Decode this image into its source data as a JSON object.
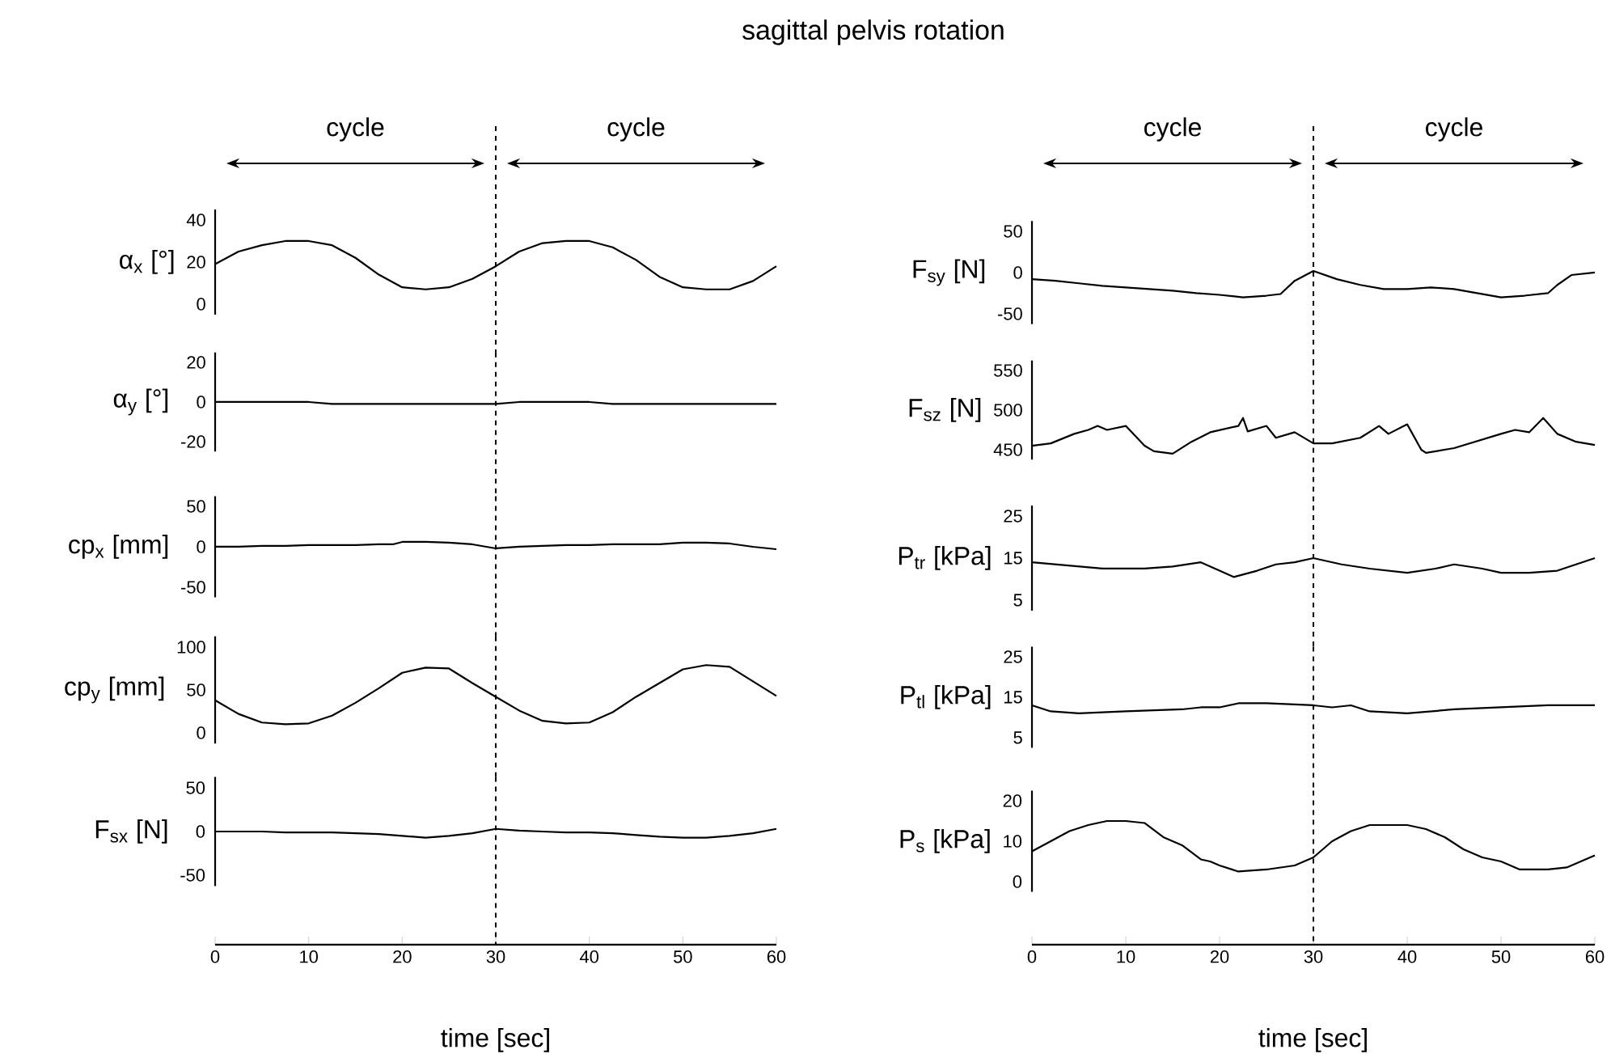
{
  "chart_data": [
    {
      "type": "line",
      "title": "sagittal pelvis rotation",
      "annotations": [
        "cycle",
        "cycle"
      ],
      "ylabel": "α$_{x}$ [°]",
      "xlim": [
        0,
        60
      ],
      "xticks": [
        0,
        10,
        20,
        30,
        40,
        50,
        60
      ],
      "ylim": [
        -5,
        45
      ],
      "yticks": [
        0,
        20,
        40
      ],
      "tick_labels": "y",
      "ref_lines": [
        {
          "axis": "x",
          "value": 30,
          "line_style": "dashed"
        }
      ],
      "series": [
        {
          "color": "#000000",
          "x": [
            0,
            2.5,
            5,
            7.5,
            10,
            12.5,
            15,
            17.5,
            20,
            22.5,
            25,
            27.5,
            30,
            32.5,
            35,
            37.5,
            40,
            42.5,
            45,
            47.5,
            50,
            52.5,
            55,
            57.5,
            60
          ],
          "values": [
            19,
            25,
            28,
            30,
            30,
            28,
            22,
            14,
            8,
            7,
            8,
            12,
            18,
            25,
            29,
            30,
            30,
            27,
            21,
            13,
            8,
            7,
            7,
            11,
            18
          ]
        }
      ]
    },
    {
      "type": "line",
      "ylabel": "α$_{y}$ [°]",
      "xlim": [
        0,
        60
      ],
      "xticks": [
        0,
        10,
        20,
        30,
        40,
        50,
        60
      ],
      "ylim": [
        -25,
        25
      ],
      "yticks": [
        -20,
        0,
        20
      ],
      "tick_labels": "y",
      "ref_lines": [
        {
          "axis": "x",
          "value": 30,
          "line_style": "dashed"
        }
      ],
      "series": [
        {
          "color": "#000000",
          "x": [
            0,
            2.5,
            5,
            7.5,
            10,
            12.5,
            15,
            17.5,
            20,
            22.5,
            25,
            27.5,
            30,
            32.5,
            35,
            37.5,
            40,
            42.5,
            45,
            47.5,
            50,
            52.5,
            55,
            57.5,
            60
          ],
          "values": [
            0,
            0,
            0,
            0,
            0,
            -1,
            -1,
            -1,
            -1,
            -1,
            -1,
            -1,
            -1,
            0,
            0,
            0,
            0,
            -1,
            -1,
            -1,
            -1,
            -1,
            -1,
            -1,
            -1
          ]
        }
      ]
    },
    {
      "type": "line",
      "ylabel": "cp$_{x}$ [mm]",
      "xlim": [
        0,
        60
      ],
      "xticks": [
        0,
        10,
        20,
        30,
        40,
        50,
        60
      ],
      "ylim": [
        -62.5,
        62.5
      ],
      "yticks": [
        -50,
        0,
        50
      ],
      "tick_labels": "y",
      "ref_lines": [
        {
          "axis": "x",
          "value": 30,
          "line_style": "dashed"
        }
      ],
      "series": [
        {
          "color": "#000000",
          "x": [
            0,
            2.5,
            5,
            7.5,
            10,
            12.5,
            15,
            17.5,
            19,
            20,
            22.5,
            25,
            27.5,
            30,
            32.5,
            35,
            37.5,
            40,
            42.5,
            45,
            47.5,
            50,
            52.5,
            55,
            57.5,
            60
          ],
          "values": [
            0,
            0,
            1,
            1,
            2,
            2,
            2,
            3,
            3,
            6,
            6,
            5,
            3,
            -2,
            0,
            1,
            2,
            2,
            3,
            3,
            3,
            5,
            5,
            4,
            0,
            -3
          ]
        }
      ]
    },
    {
      "type": "line",
      "ylabel": "cp$_{y}$ [mm]",
      "xlim": [
        0,
        60
      ],
      "xticks": [
        0,
        10,
        20,
        30,
        40,
        50,
        60
      ],
      "ylim": [
        -12.5,
        112.5
      ],
      "yticks": [
        0,
        50,
        100
      ],
      "tick_labels": "y",
      "ref_lines": [
        {
          "axis": "x",
          "value": 30,
          "line_style": "dashed"
        }
      ],
      "series": [
        {
          "color": "#000000",
          "x": [
            0,
            2.5,
            5,
            7.5,
            10,
            12.5,
            15,
            17.5,
            20,
            22.5,
            25,
            27.5,
            30,
            32.5,
            35,
            37.5,
            40,
            42.5,
            45,
            47.5,
            50,
            52.5,
            55,
            57.5,
            60
          ],
          "values": [
            38,
            22,
            12,
            10,
            11,
            20,
            35,
            52,
            70,
            76,
            75,
            58,
            42,
            26,
            14,
            11,
            12,
            24,
            42,
            58,
            74,
            79,
            77,
            60,
            43
          ]
        }
      ]
    },
    {
      "type": "line",
      "ylabel": "F$_{sx}$ [N]",
      "xlabel": "time [sec]",
      "xlim": [
        0,
        60
      ],
      "xticks": [
        0,
        10,
        20,
        30,
        40,
        50,
        60
      ],
      "ylim": [
        -62.5,
        62.5
      ],
      "yticks": [
        -50,
        0,
        50
      ],
      "ref_lines": [
        {
          "axis": "x",
          "value": 30,
          "line_style": "dashed"
        }
      ],
      "series": [
        {
          "color": "#000000",
          "x": [
            0,
            2.5,
            5,
            7.5,
            10,
            12.5,
            15,
            17.5,
            20,
            22.5,
            25,
            27.5,
            30,
            32.5,
            35,
            37.5,
            40,
            42.5,
            45,
            47.5,
            50,
            52.5,
            55,
            57.5,
            60
          ],
          "values": [
            0,
            0,
            0,
            -1,
            -1,
            -1,
            -2,
            -3,
            -5,
            -7,
            -5,
            -2,
            3,
            1,
            0,
            -1,
            -1,
            -2,
            -4,
            -6,
            -7,
            -7,
            -5,
            -2,
            3
          ]
        }
      ]
    },
    {
      "type": "line",
      "annotations": [
        "cycle",
        "cycle"
      ],
      "ylabel": "F$_{sy}$ [N]",
      "xlim": [
        0,
        60
      ],
      "xticks": [
        0,
        10,
        20,
        30,
        40,
        50,
        60
      ],
      "ylim": [
        -62.5,
        62.5
      ],
      "yticks": [
        -50,
        0,
        50
      ],
      "tick_labels": "y",
      "ref_lines": [
        {
          "axis": "x",
          "value": 30,
          "line_style": "dashed"
        }
      ],
      "series": [
        {
          "color": "#000000",
          "x": [
            0,
            2.5,
            5,
            7.5,
            10,
            12.5,
            15,
            17.5,
            20,
            22.5,
            25,
            26.5,
            28,
            30,
            32.5,
            35,
            37.5,
            40,
            42.5,
            45,
            47.5,
            50,
            52.5,
            55,
            56,
            57.5,
            60
          ],
          "values": [
            -8,
            -10,
            -13,
            -16,
            -18,
            -20,
            -22,
            -25,
            -27,
            -30,
            -28,
            -26,
            -10,
            2,
            -8,
            -15,
            -20,
            -20,
            -18,
            -20,
            -25,
            -30,
            -28,
            -25,
            -15,
            -3,
            0
          ]
        }
      ]
    },
    {
      "type": "line",
      "ylabel": "F$_{sz}$ [N]",
      "xlim": [
        0,
        60
      ],
      "xticks": [
        0,
        10,
        20,
        30,
        40,
        50,
        60
      ],
      "ylim": [
        437.5,
        562.5
      ],
      "yticks": [
        450,
        500,
        550
      ],
      "tick_labels": "y",
      "ref_lines": [
        {
          "axis": "x",
          "value": 30,
          "line_style": "dashed"
        }
      ],
      "series": [
        {
          "color": "#000000",
          "x": [
            0,
            2,
            4.5,
            6,
            7,
            8,
            10,
            12,
            13,
            15,
            17,
            19,
            22,
            22.5,
            23,
            25,
            26,
            28,
            29,
            30,
            32,
            35,
            37,
            38,
            40,
            41.5,
            42,
            45,
            50,
            51.5,
            53,
            54.5,
            56,
            58,
            60
          ],
          "values": [
            455,
            458,
            470,
            475,
            480,
            475,
            480,
            455,
            448,
            445,
            460,
            472,
            480,
            490,
            473,
            480,
            465,
            472,
            465,
            458,
            458,
            465,
            480,
            470,
            482,
            450,
            446,
            452,
            470,
            475,
            472,
            490,
            470,
            460,
            456
          ]
        }
      ]
    },
    {
      "type": "line",
      "ylabel": "P$_{tr}$ [kPa]",
      "xlim": [
        0,
        60
      ],
      "xticks": [
        0,
        10,
        20,
        30,
        40,
        50,
        60
      ],
      "ylim": [
        2.5,
        27.5
      ],
      "yticks": [
        5,
        15,
        25
      ],
      "tick_labels": "y",
      "ref_lines": [
        {
          "axis": "x",
          "value": 30,
          "line_style": "dashed"
        }
      ],
      "series": [
        {
          "color": "#000000",
          "x": [
            0,
            5,
            7.5,
            12,
            15,
            18,
            20,
            21.5,
            24,
            26,
            28,
            30,
            33,
            36,
            40,
            43,
            45,
            48,
            50,
            53,
            56,
            58,
            60
          ],
          "values": [
            14,
            13,
            12.5,
            12.5,
            13,
            14,
            12,
            10.5,
            12,
            13.5,
            14,
            15,
            13.5,
            12.5,
            11.5,
            12.5,
            13.5,
            12.5,
            11.5,
            11.5,
            12,
            13.5,
            15
          ]
        }
      ]
    },
    {
      "type": "line",
      "ylabel": "P$_{tl}$ [kPa]",
      "xlim": [
        0,
        60
      ],
      "xticks": [
        0,
        10,
        20,
        30,
        40,
        50,
        60
      ],
      "ylim": [
        2.5,
        27.5
      ],
      "yticks": [
        5,
        15,
        25
      ],
      "tick_labels": "y",
      "ref_lines": [
        {
          "axis": "x",
          "value": 30,
          "line_style": "dashed"
        }
      ],
      "series": [
        {
          "color": "#000000",
          "x": [
            0,
            2,
            5,
            10,
            16,
            18,
            20,
            22,
            25,
            30,
            32,
            34,
            36,
            40,
            45,
            50,
            55,
            60
          ],
          "values": [
            13,
            11.5,
            11,
            11.5,
            12,
            12.5,
            12.5,
            13.5,
            13.5,
            13,
            12.5,
            13,
            11.5,
            11,
            12,
            12.5,
            13,
            13
          ]
        }
      ]
    },
    {
      "type": "line",
      "ylabel": "P$_{s}$ [kPa]",
      "xlabel": "time [sec]",
      "xlim": [
        0,
        60
      ],
      "xticks": [
        0,
        10,
        20,
        30,
        40,
        50,
        60
      ],
      "ylim": [
        -2.5,
        22.5
      ],
      "yticks": [
        0,
        10,
        20
      ],
      "ref_lines": [
        {
          "axis": "x",
          "value": 30,
          "line_style": "dashed"
        }
      ],
      "series": [
        {
          "color": "#000000",
          "x": [
            0,
            2,
            4,
            6,
            8,
            10,
            12,
            14,
            16,
            18,
            19,
            20,
            22,
            25,
            28,
            30,
            32,
            34,
            36,
            38,
            40,
            42,
            44,
            46,
            48,
            50,
            52,
            55,
            57,
            60
          ],
          "values": [
            7.5,
            10,
            12.5,
            14,
            15,
            15,
            14.5,
            11,
            9,
            5.5,
            5,
            4,
            2.5,
            3,
            4,
            6,
            10,
            12.5,
            14,
            14,
            14,
            13,
            11,
            8,
            6,
            5,
            3,
            3,
            3.5,
            6.5
          ]
        }
      ]
    }
  ]
}
